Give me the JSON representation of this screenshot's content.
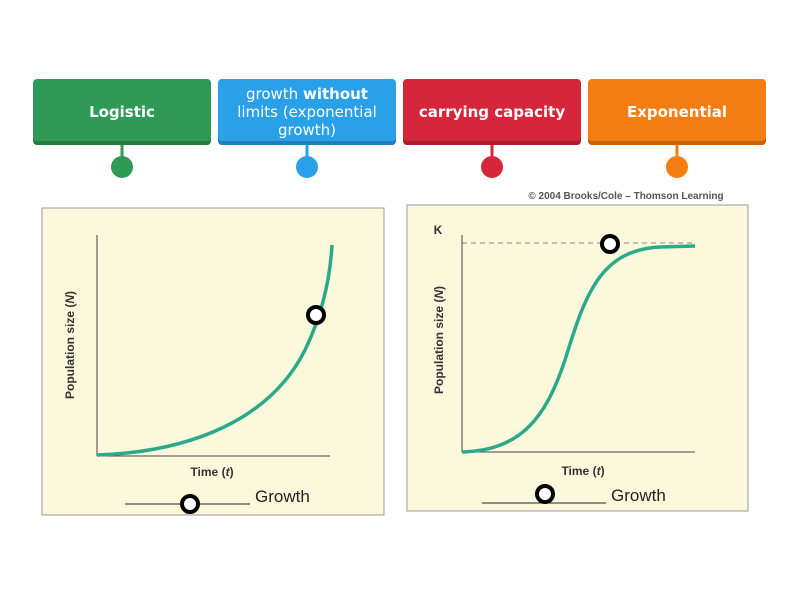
{
  "tiles": [
    {
      "label": "Logistic"
    },
    {
      "label_parts": [
        "growth ",
        "without",
        " limits (exponential growth)"
      ]
    },
    {
      "label": "carrying capacity"
    },
    {
      "label": "Exponential"
    }
  ],
  "figures": {
    "credit": "© 2004 Brooks/Cole – Thomson Learning",
    "graphs": [
      {
        "y_axis_label": [
          "Population size (",
          "N",
          ")"
        ],
        "x_axis_label": [
          "Time (",
          "t",
          ")"
        ],
        "blank_suffix": "Growth"
      },
      {
        "k_label": "K",
        "y_axis_label": [
          "Population size (",
          "N",
          ")"
        ],
        "x_axis_label": [
          "Time (",
          "t",
          ")"
        ],
        "blank_suffix": "Growth"
      }
    ]
  }
}
